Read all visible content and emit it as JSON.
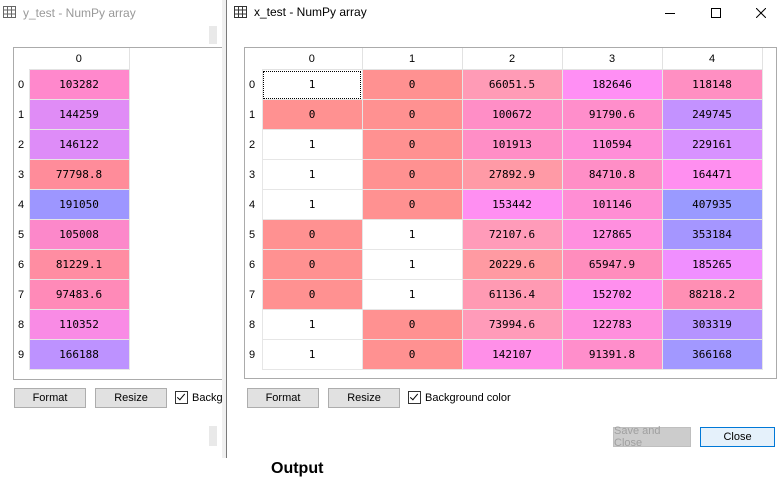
{
  "back_window": {
    "title": "y_test - NumPy array",
    "column_header": "0",
    "rows": [
      {
        "index": "0",
        "value": "103282",
        "color": "#ff88cc"
      },
      {
        "index": "1",
        "value": "144259",
        "color": "#e08cf6"
      },
      {
        "index": "2",
        "value": "146122",
        "color": "#de8cf8"
      },
      {
        "index": "3",
        "value": "77798.8",
        "color": "#ff8c9a"
      },
      {
        "index": "4",
        "value": "191050",
        "color": "#9d96ff"
      },
      {
        "index": "5",
        "value": "105008",
        "color": "#fc88ca"
      },
      {
        "index": "6",
        "value": "81229.1",
        "color": "#ff8da2"
      },
      {
        "index": "7",
        "value": "97483.6",
        "color": "#ff8ab8"
      },
      {
        "index": "8",
        "value": "110352",
        "color": "#f98be5"
      },
      {
        "index": "9",
        "value": "166188",
        "color": "#bd92ff"
      }
    ],
    "format_label": "Format",
    "resize_label": "Resize",
    "bg_checkbox_label": "Backgr"
  },
  "front_window": {
    "title": "x_test - NumPy array",
    "column_headers": [
      "0",
      "1",
      "2",
      "3",
      "4"
    ],
    "rows": [
      {
        "index": "0",
        "cells": [
          {
            "v": "1",
            "c": "#ffffff"
          },
          {
            "v": "0",
            "c": "#ff9191"
          },
          {
            "v": "66051.5",
            "c": "#ff9bb6"
          },
          {
            "v": "182646",
            "c": "#ff8ff4"
          },
          {
            "v": "118148",
            "c": "#ff8fc2"
          }
        ]
      },
      {
        "index": "1",
        "cells": [
          {
            "v": "0",
            "c": "#ff9191"
          },
          {
            "v": "0",
            "c": "#ff9191"
          },
          {
            "v": "100672",
            "c": "#ff8ec6"
          },
          {
            "v": "91790.6",
            "c": "#ff8ecb"
          },
          {
            "v": "249745",
            "c": "#c392ff"
          }
        ]
      },
      {
        "index": "2",
        "cells": [
          {
            "v": "1",
            "c": "#ffffff"
          },
          {
            "v": "0",
            "c": "#ff9191"
          },
          {
            "v": "101913",
            "c": "#ff8ec6"
          },
          {
            "v": "110594",
            "c": "#ff8ed8"
          },
          {
            "v": "229161",
            "c": "#d892ff"
          }
        ]
      },
      {
        "index": "3",
        "cells": [
          {
            "v": "1",
            "c": "#ffffff"
          },
          {
            "v": "0",
            "c": "#ff9191"
          },
          {
            "v": "27892.9",
            "c": "#ff9aa6"
          },
          {
            "v": "84710.8",
            "c": "#ff8ec6"
          },
          {
            "v": "164471",
            "c": "#ff8ff0"
          }
        ]
      },
      {
        "index": "4",
        "cells": [
          {
            "v": "1",
            "c": "#ffffff"
          },
          {
            "v": "0",
            "c": "#ff9191"
          },
          {
            "v": "153442",
            "c": "#ff8ff2"
          },
          {
            "v": "101146",
            "c": "#ff8ed4"
          },
          {
            "v": "407935",
            "c": "#9a9aff"
          }
        ]
      },
      {
        "index": "5",
        "cells": [
          {
            "v": "0",
            "c": "#ff9191"
          },
          {
            "v": "1",
            "c": "#ffffff"
          },
          {
            "v": "72107.6",
            "c": "#ff9bb9"
          },
          {
            "v": "127865",
            "c": "#ff8fdf"
          },
          {
            "v": "353184",
            "c": "#a596ff"
          }
        ]
      },
      {
        "index": "6",
        "cells": [
          {
            "v": "0",
            "c": "#ff9191"
          },
          {
            "v": "1",
            "c": "#ffffff"
          },
          {
            "v": "20229.6",
            "c": "#ff9aa2"
          },
          {
            "v": "65947.9",
            "c": "#ff8dbd"
          },
          {
            "v": "185265",
            "c": "#f08fff"
          }
        ]
      },
      {
        "index": "7",
        "cells": [
          {
            "v": "0",
            "c": "#ff9191"
          },
          {
            "v": "1",
            "c": "#ffffff"
          },
          {
            "v": "61136.4",
            "c": "#ff9ab3"
          },
          {
            "v": "152702",
            "c": "#ff8fee"
          },
          {
            "v": "88218.2",
            "c": "#ff8fb4"
          }
        ]
      },
      {
        "index": "8",
        "cells": [
          {
            "v": "1",
            "c": "#ffffff"
          },
          {
            "v": "0",
            "c": "#ff9191"
          },
          {
            "v": "73994.6",
            "c": "#ff9bb9"
          },
          {
            "v": "122783",
            "c": "#ff8fdd"
          },
          {
            "v": "303319",
            "c": "#b594ff"
          }
        ]
      },
      {
        "index": "9",
        "cells": [
          {
            "v": "1",
            "c": "#ffffff"
          },
          {
            "v": "0",
            "c": "#ff9191"
          },
          {
            "v": "142107",
            "c": "#ff8fe8"
          },
          {
            "v": "91391.8",
            "c": "#ff8ecb"
          },
          {
            "v": "366168",
            "c": "#a298ff"
          }
        ]
      }
    ],
    "format_label": "Format",
    "resize_label": "Resize",
    "bg_checkbox_label": "Background color",
    "save_close_label": "Save and Close",
    "close_label": "Close"
  },
  "footer": {
    "output_label": "Output"
  }
}
